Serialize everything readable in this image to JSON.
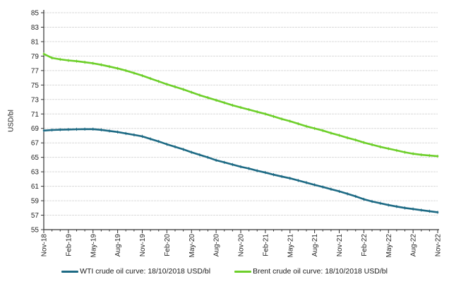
{
  "chart_data": {
    "type": "line",
    "title": "",
    "xlabel": "",
    "ylabel": "USD/bl",
    "ylim": [
      55,
      85
    ],
    "ytick_step": 2,
    "grid": "horizontal",
    "legend_position": "bottom",
    "x_tick_labels": [
      "Nov-18",
      "Feb-19",
      "May-19",
      "Aug-19",
      "Nov-19",
      "Feb-20",
      "May-20",
      "Aug-20",
      "Nov-20",
      "Feb-21",
      "May-21",
      "Aug-21",
      "Nov-21",
      "Feb-22",
      "May-22",
      "Aug-22",
      "Nov-22"
    ],
    "x_tick_every": 3,
    "x_unit": "month",
    "series": [
      {
        "name": "WTI crude oil curve: 18/10/2018 USD/bl",
        "color": "#1d6a84",
        "values": [
          68.7,
          68.78,
          68.82,
          68.85,
          68.88,
          68.9,
          68.9,
          68.8,
          68.65,
          68.5,
          68.3,
          68.1,
          67.9,
          67.55,
          67.2,
          66.8,
          66.45,
          66.1,
          65.7,
          65.35,
          65.0,
          64.6,
          64.3,
          64.0,
          63.7,
          63.45,
          63.15,
          62.9,
          62.6,
          62.35,
          62.1,
          61.8,
          61.5,
          61.2,
          60.9,
          60.6,
          60.3,
          59.95,
          59.6,
          59.2,
          58.9,
          58.65,
          58.4,
          58.2,
          58.0,
          57.85,
          57.7,
          57.55,
          57.4
        ]
      },
      {
        "name": "Brent crude oil curve: 18/10/2018 USD/bl",
        "color": "#6dcf2a",
        "values": [
          79.3,
          78.75,
          78.55,
          78.4,
          78.3,
          78.15,
          78.0,
          77.8,
          77.55,
          77.3,
          77.0,
          76.65,
          76.3,
          75.9,
          75.5,
          75.1,
          74.75,
          74.4,
          74.0,
          73.6,
          73.25,
          72.9,
          72.55,
          72.2,
          71.9,
          71.6,
          71.3,
          71.0,
          70.65,
          70.3,
          70.0,
          69.65,
          69.3,
          69.0,
          68.7,
          68.35,
          68.05,
          67.7,
          67.4,
          67.05,
          66.75,
          66.45,
          66.2,
          65.95,
          65.7,
          65.5,
          65.35,
          65.25,
          65.15
        ]
      }
    ],
    "style": {
      "gridline_color": "#d9d9d9",
      "axis_color": "#333333",
      "tick_label_color": "#262626"
    }
  }
}
